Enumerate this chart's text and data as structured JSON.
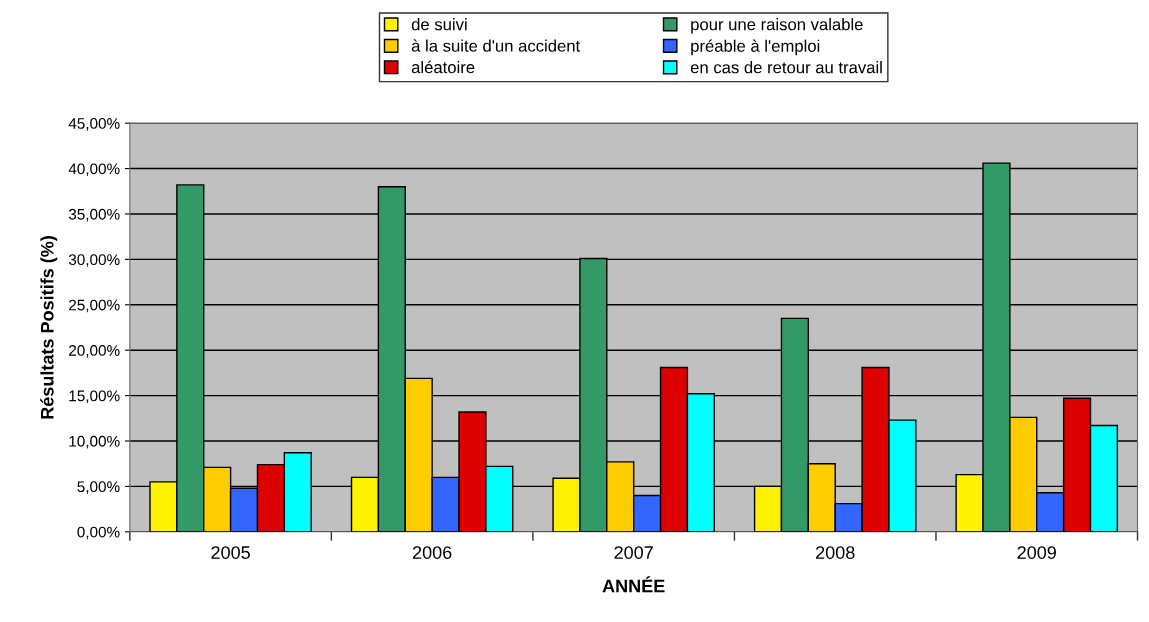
{
  "chart_data": {
    "type": "bar",
    "xlabel": "ANNÉE",
    "ylabel": "Résultats Positifs (%)",
    "categories": [
      "2005",
      "2006",
      "2007",
      "2008",
      "2009"
    ],
    "series": [
      {
        "name": "de suivi",
        "color": "#fff200",
        "values": [
          5.5,
          6.0,
          5.9,
          5.0,
          6.3
        ]
      },
      {
        "name": "pour une raison valable",
        "color": "#339966",
        "values": [
          38.2,
          38.0,
          30.1,
          23.5,
          40.6
        ]
      },
      {
        "name": "à la suite d'un accident",
        "color": "#ffcc00",
        "values": [
          7.1,
          16.9,
          7.7,
          7.5,
          12.6
        ]
      },
      {
        "name": "préable à l'emploi",
        "color": "#3366ff",
        "values": [
          4.8,
          6.0,
          4.0,
          3.1,
          4.3
        ]
      },
      {
        "name": "aléatoire",
        "color": "#dd0000",
        "values": [
          7.4,
          13.2,
          18.1,
          18.1,
          14.7
        ]
      },
      {
        "name": "en cas de retour au travail",
        "color": "#00ffff",
        "values": [
          8.7,
          7.2,
          15.2,
          12.3,
          11.7
        ]
      }
    ],
    "ylim": [
      0,
      45
    ],
    "yticks": [
      {
        "value": 0,
        "label": "0,00%"
      },
      {
        "value": 5,
        "label": "5,00%"
      },
      {
        "value": 10,
        "label": "10,00%"
      },
      {
        "value": 15,
        "label": "15,00%"
      },
      {
        "value": 20,
        "label": "20,00%"
      },
      {
        "value": 25,
        "label": "25,00%"
      },
      {
        "value": 30,
        "label": "30,00%"
      },
      {
        "value": 35,
        "label": "35,00%"
      },
      {
        "value": 40,
        "label": "40,00%"
      },
      {
        "value": 45,
        "label": "45,00%"
      }
    ],
    "grid": "y",
    "legend": "top"
  }
}
